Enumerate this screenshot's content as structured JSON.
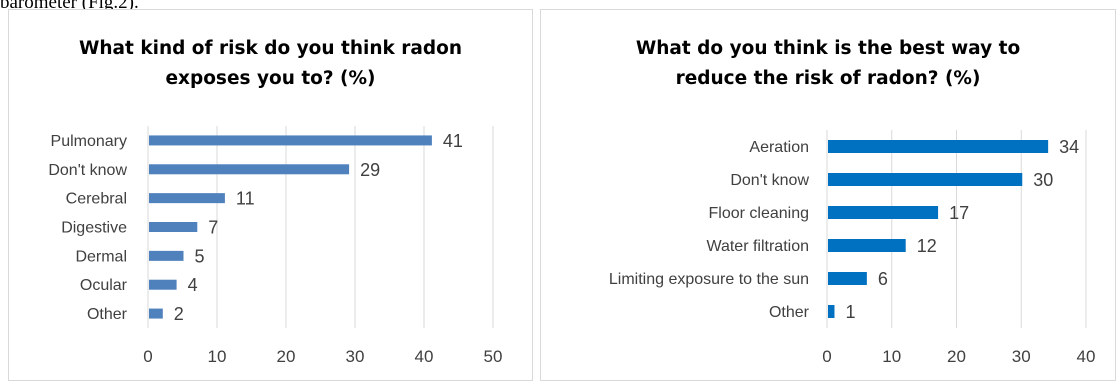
{
  "page": {
    "lead_text": "barometer (Fig.2)."
  },
  "chart_data": [
    {
      "type": "bar",
      "orientation": "horizontal",
      "title": "What kind of risk do you think radon exposes you to? (%)",
      "title_lines": [
        "What kind of risk do you think radon",
        "exposes you to? (%)"
      ],
      "categories": [
        "Pulmonary",
        "Don't know",
        "Cerebral",
        "Digestive",
        "Dermal",
        "Ocular",
        "Other"
      ],
      "values": [
        41,
        29,
        11,
        7,
        5,
        4,
        2
      ],
      "xlim": [
        0,
        50
      ],
      "xticks": [
        0,
        10,
        20,
        30,
        40,
        50
      ],
      "grid": true,
      "data_labels": true,
      "bar_color": "#4f81bd",
      "xlabel": "",
      "ylabel": ""
    },
    {
      "type": "bar",
      "orientation": "horizontal",
      "title": "What do you think is the best way to reduce the risk of radon? (%)",
      "title_lines": [
        "What do you think is the best way to",
        "reduce the risk of radon? (%)"
      ],
      "categories": [
        "Aeration",
        "Don't know",
        "Floor cleaning",
        "Water filtration",
        "Limiting exposure to the sun",
        "Other"
      ],
      "values": [
        34,
        30,
        17,
        12,
        6,
        1
      ],
      "xlim": [
        0,
        40
      ],
      "xticks": [
        0,
        10,
        20,
        30,
        40
      ],
      "grid": true,
      "data_labels": true,
      "bar_color": "#0070c0",
      "xlabel": "",
      "ylabel": ""
    }
  ]
}
